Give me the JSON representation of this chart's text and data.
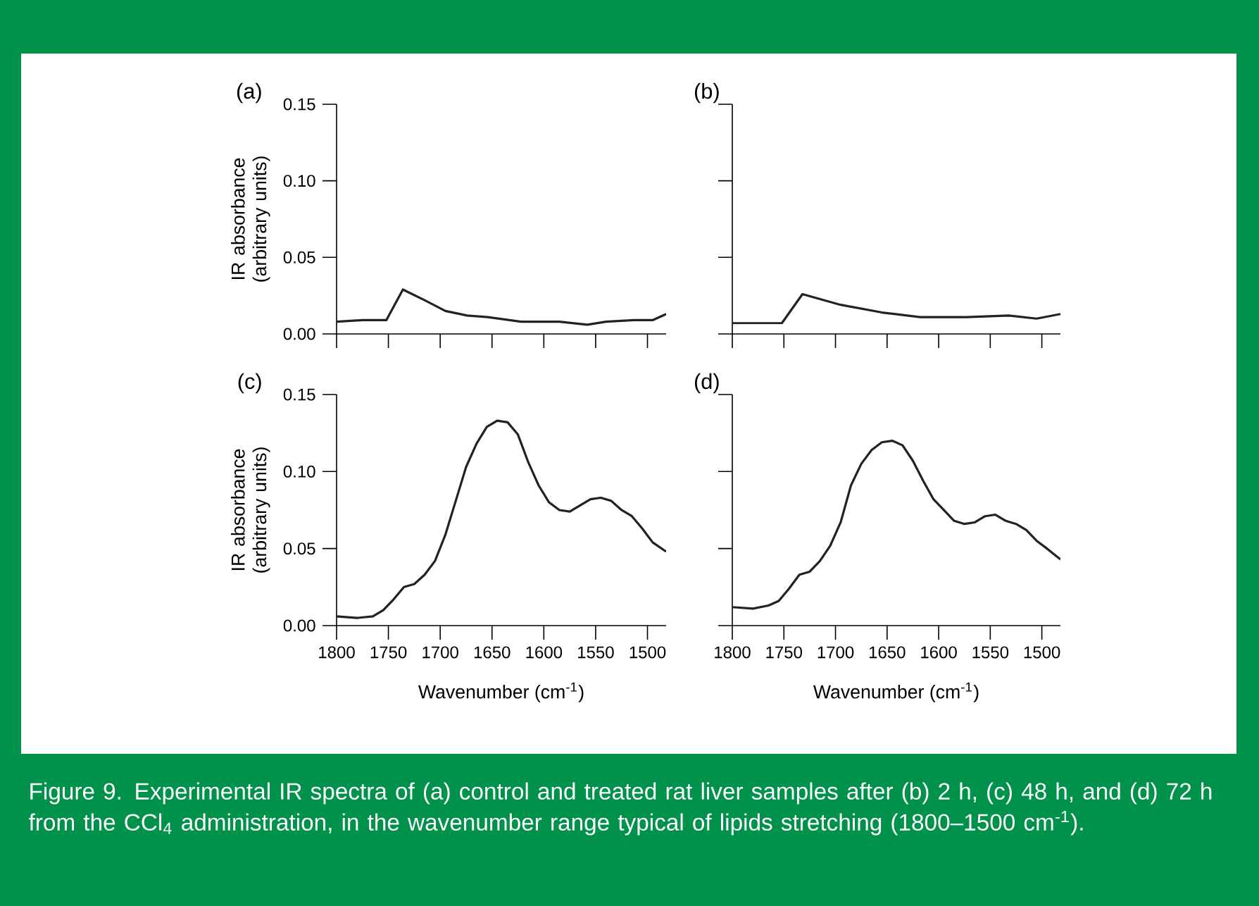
{
  "chart_data": [
    {
      "type": "line",
      "title": "(a)",
      "ylabel": "IR absorbance (arbitrary units)",
      "xlim": [
        1800,
        1482
      ],
      "xticks": [
        1800,
        1750,
        1700,
        1650,
        1600,
        1550,
        1500
      ],
      "ylim": [
        0,
        0.15
      ],
      "yticks": [
        {
          "value": 0,
          "label": "0.00"
        },
        {
          "value": 0.05,
          "label": "0.05"
        },
        {
          "value": 0.1,
          "label": "0.10"
        },
        {
          "value": 0.15,
          "label": "0.15"
        }
      ],
      "tick_labels": "y",
      "x": [
        1800,
        1775,
        1752,
        1736,
        1715,
        1695,
        1674,
        1654,
        1622,
        1585,
        1558,
        1540,
        1513,
        1495,
        1482
      ],
      "series": [
        {
          "color": "#222222",
          "values": [
            0.008,
            0.009,
            0.009,
            0.029,
            0.022,
            0.015,
            0.012,
            0.011,
            0.008,
            0.008,
            0.006,
            0.008,
            0.009,
            0.009,
            0.013
          ]
        }
      ]
    },
    {
      "type": "line",
      "title": "(b)",
      "xlim": [
        1800,
        1482
      ],
      "xticks": [
        1800,
        1750,
        1700,
        1650,
        1600,
        1550,
        1500
      ],
      "ylim": [
        0,
        0.15
      ],
      "yticks": [
        {
          "value": 0,
          "label": null
        },
        {
          "value": 0.05,
          "label": null
        },
        {
          "value": 0.1,
          "label": null
        },
        {
          "value": 0.15,
          "label": null
        }
      ],
      "tick_labels": false,
      "x": [
        1800,
        1775,
        1752,
        1732,
        1695,
        1655,
        1618,
        1573,
        1532,
        1505,
        1482
      ],
      "series": [
        {
          "color": "#222222",
          "values": [
            0.007,
            0.007,
            0.007,
            0.026,
            0.019,
            0.014,
            0.011,
            0.011,
            0.012,
            0.01,
            0.013
          ]
        }
      ]
    },
    {
      "type": "line",
      "title": "(c)",
      "ylabel": "IR absorbance (arbitrary units)",
      "xlabel": "Wavenumber (cm$^{-1}$)",
      "xlim": [
        1800,
        1482
      ],
      "xticks": [
        1800,
        1750,
        1700,
        1650,
        1600,
        1550,
        1500
      ],
      "ylim": [
        0,
        0.15
      ],
      "yticks": [
        {
          "value": 0,
          "label": "0.00"
        },
        {
          "value": 0.05,
          "label": "0.05"
        },
        {
          "value": 0.1,
          "label": "0.10"
        },
        {
          "value": 0.15,
          "label": "0.15"
        }
      ],
      "x": [
        1800,
        1780,
        1765,
        1755,
        1745,
        1735,
        1725,
        1715,
        1705,
        1695,
        1685,
        1675,
        1665,
        1655,
        1645,
        1635,
        1625,
        1615,
        1605,
        1595,
        1585,
        1575,
        1565,
        1555,
        1545,
        1535,
        1525,
        1515,
        1505,
        1495,
        1482
      ],
      "series": [
        {
          "color": "#222222",
          "values": [
            0.006,
            0.005,
            0.006,
            0.01,
            0.017,
            0.025,
            0.027,
            0.033,
            0.042,
            0.059,
            0.081,
            0.103,
            0.118,
            0.129,
            0.133,
            0.132,
            0.124,
            0.106,
            0.091,
            0.08,
            0.075,
            0.074,
            0.078,
            0.082,
            0.083,
            0.081,
            0.075,
            0.071,
            0.063,
            0.054,
            0.048
          ]
        }
      ]
    },
    {
      "type": "line",
      "title": "(d)",
      "xlabel": "Wavenumber (cm$^{-1}$)",
      "xlim": [
        1800,
        1482
      ],
      "xticks": [
        1800,
        1750,
        1700,
        1650,
        1600,
        1550,
        1500
      ],
      "ylim": [
        0,
        0.15
      ],
      "yticks": [
        {
          "value": 0,
          "label": null
        },
        {
          "value": 0.05,
          "label": null
        },
        {
          "value": 0.1,
          "label": null
        },
        {
          "value": 0.15,
          "label": null
        }
      ],
      "tick_labels": "x",
      "x": [
        1800,
        1780,
        1765,
        1755,
        1745,
        1735,
        1725,
        1715,
        1705,
        1695,
        1685,
        1675,
        1665,
        1655,
        1645,
        1635,
        1625,
        1615,
        1605,
        1595,
        1585,
        1575,
        1565,
        1555,
        1545,
        1535,
        1525,
        1515,
        1505,
        1495,
        1482
      ],
      "series": [
        {
          "color": "#222222",
          "values": [
            0.012,
            0.011,
            0.013,
            0.016,
            0.024,
            0.033,
            0.035,
            0.042,
            0.052,
            0.067,
            0.091,
            0.105,
            0.114,
            0.119,
            0.12,
            0.117,
            0.107,
            0.094,
            0.082,
            0.075,
            0.068,
            0.066,
            0.067,
            0.071,
            0.072,
            0.068,
            0.066,
            0.062,
            0.055,
            0.05,
            0.043
          ]
        }
      ],
      "annotations": [
        "Figure 9. Experimental IR spectra of (a) control and treated rat liver samples after (b) 2 h, (c) 48 h, and (d) 72 h from the CCl$_{4}$ administration, in the wavenumber range typical of lipids stretching (1800–1500 cm$^{-1}$)."
      ]
    }
  ]
}
